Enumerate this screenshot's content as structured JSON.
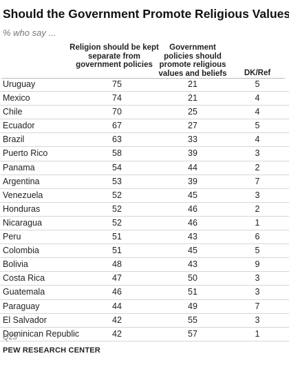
{
  "title": "Should the Government Promote Religious Values?",
  "subtitle": "% who say ...",
  "note": "Q23",
  "source": "PEW RESEARCH CENTER",
  "chart_data": {
    "type": "table",
    "title": "Should the Government Promote Religious Values?",
    "columns": [
      "Religion should be kept separate from government policies",
      "Government policies should promote religious values and beliefs",
      "DK/Ref"
    ],
    "rows": [
      {
        "country": "Uruguay",
        "values": [
          75,
          21,
          5
        ]
      },
      {
        "country": "Mexico",
        "values": [
          74,
          21,
          4
        ]
      },
      {
        "country": "Chile",
        "values": [
          70,
          25,
          4
        ]
      },
      {
        "country": "Ecuador",
        "values": [
          67,
          27,
          5
        ]
      },
      {
        "country": "Brazil",
        "values": [
          63,
          33,
          4
        ]
      },
      {
        "country": "Puerto Rico",
        "values": [
          58,
          39,
          3
        ]
      },
      {
        "country": "Panama",
        "values": [
          54,
          44,
          2
        ]
      },
      {
        "country": "Argentina",
        "values": [
          53,
          39,
          7
        ]
      },
      {
        "country": "Venezuela",
        "values": [
          52,
          45,
          3
        ]
      },
      {
        "country": "Honduras",
        "values": [
          52,
          46,
          2
        ]
      },
      {
        "country": "Nicaragua",
        "values": [
          52,
          46,
          1
        ]
      },
      {
        "country": "Peru",
        "values": [
          51,
          43,
          6
        ]
      },
      {
        "country": "Colombia",
        "values": [
          51,
          45,
          5
        ]
      },
      {
        "country": "Bolivia",
        "values": [
          48,
          43,
          9
        ]
      },
      {
        "country": "Costa Rica",
        "values": [
          47,
          50,
          3
        ]
      },
      {
        "country": "Guatemala",
        "values": [
          46,
          51,
          3
        ]
      },
      {
        "country": "Paraguay",
        "values": [
          44,
          49,
          7
        ]
      },
      {
        "country": "El Salvador",
        "values": [
          42,
          55,
          3
        ]
      },
      {
        "country": "Dominican Republic",
        "values": [
          42,
          57,
          1
        ]
      }
    ]
  }
}
